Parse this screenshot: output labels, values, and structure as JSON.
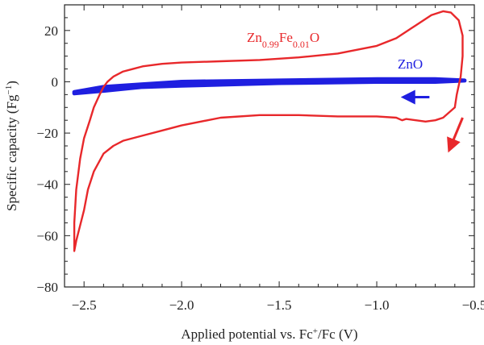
{
  "chart_data": {
    "type": "line",
    "xlabel": "Applied potential vs. Fc",
    "xlabel_sup": "+",
    "xlabel_tail": "/Fc (V)",
    "ylabel": "Specific capacity (Fg",
    "ylabel_sup": "−1",
    "ylabel_tail": ")",
    "xlim": [
      -2.6,
      -0.5
    ],
    "ylim": [
      -80,
      30
    ],
    "x_ticks": [
      -2.5,
      -2.0,
      -1.5,
      -1.0,
      -0.5
    ],
    "x_tick_labels": [
      "−2.5",
      "−2.0",
      "−1.5",
      "−1.0",
      "−0.5"
    ],
    "y_ticks": [
      -80,
      -60,
      -40,
      -20,
      0,
      20
    ],
    "y_tick_labels": [
      "−80",
      "−60",
      "−40",
      "−20",
      "0",
      "20"
    ],
    "grid": false,
    "series": [
      {
        "name": "Zn0.99Fe0.01O",
        "label_parts": [
          {
            "text": "Zn",
            "sub": false
          },
          {
            "text": "0.99",
            "sub": true
          },
          {
            "text": "Fe",
            "sub": false
          },
          {
            "text": "0.01",
            "sub": true
          },
          {
            "text": "O",
            "sub": false
          }
        ],
        "color": "#e8282b",
        "x": [
          -0.6,
          -0.63,
          -0.66,
          -0.7,
          -0.75,
          -0.8,
          -0.85,
          -0.87,
          -0.9,
          -1.0,
          -1.2,
          -1.4,
          -1.6,
          -1.8,
          -2.0,
          -2.1,
          -2.2,
          -2.3,
          -2.35,
          -2.4,
          -2.45,
          -2.48,
          -2.5,
          -2.52,
          -2.54,
          -2.55,
          -2.55,
          -2.54,
          -2.52,
          -2.5,
          -2.47,
          -2.45,
          -2.42,
          -2.4,
          -2.38,
          -2.35,
          -2.3,
          -2.25,
          -2.2,
          -2.1,
          -2.0,
          -1.8,
          -1.6,
          -1.4,
          -1.2,
          -1.0,
          -0.9,
          -0.8,
          -0.72,
          -0.66,
          -0.62,
          -0.58,
          -0.56,
          -0.56,
          -0.57,
          -0.59,
          -0.6
        ],
        "y": [
          -10,
          -12,
          -14,
          -15,
          -15.5,
          -15,
          -14.5,
          -15,
          -14,
          -13.5,
          -13.5,
          -13,
          -13,
          -14,
          -17,
          -19,
          -21,
          -23,
          -25,
          -28,
          -35,
          -42,
          -50,
          -56,
          -62,
          -66,
          -55,
          -42,
          -30,
          -22,
          -15,
          -10,
          -5,
          -2,
          0,
          2,
          4,
          5,
          6,
          7,
          7.5,
          8,
          8.5,
          9.5,
          11,
          14,
          17,
          22,
          26,
          27.5,
          27,
          24,
          18,
          10,
          2,
          -5,
          -10
        ]
      },
      {
        "name": "ZnO",
        "label_parts": [
          {
            "text": "ZnO",
            "sub": false
          }
        ],
        "color": "#1f1fe0",
        "x": [
          -2.55,
          -2.4,
          -2.2,
          -2.0,
          -1.5,
          -1.0,
          -0.7,
          -0.55,
          -0.7,
          -1.0,
          -1.5,
          -2.0,
          -2.2,
          -2.4,
          -2.55
        ],
        "y": [
          -4,
          -2,
          -1,
          0,
          0.5,
          1,
          1,
          0.5,
          0,
          0,
          -0.5,
          -1.5,
          -2,
          -3.5,
          -4.5
        ]
      }
    ],
    "annotations": [
      {
        "name": "blue-arrow",
        "color": "#1f1fe0",
        "from": [
          -0.73,
          -6
        ],
        "to": [
          -0.84,
          -6
        ]
      },
      {
        "name": "red-arrow",
        "color": "#e8282b",
        "from": [
          -0.56,
          -14
        ],
        "to": [
          -0.62,
          -25
        ]
      }
    ]
  }
}
